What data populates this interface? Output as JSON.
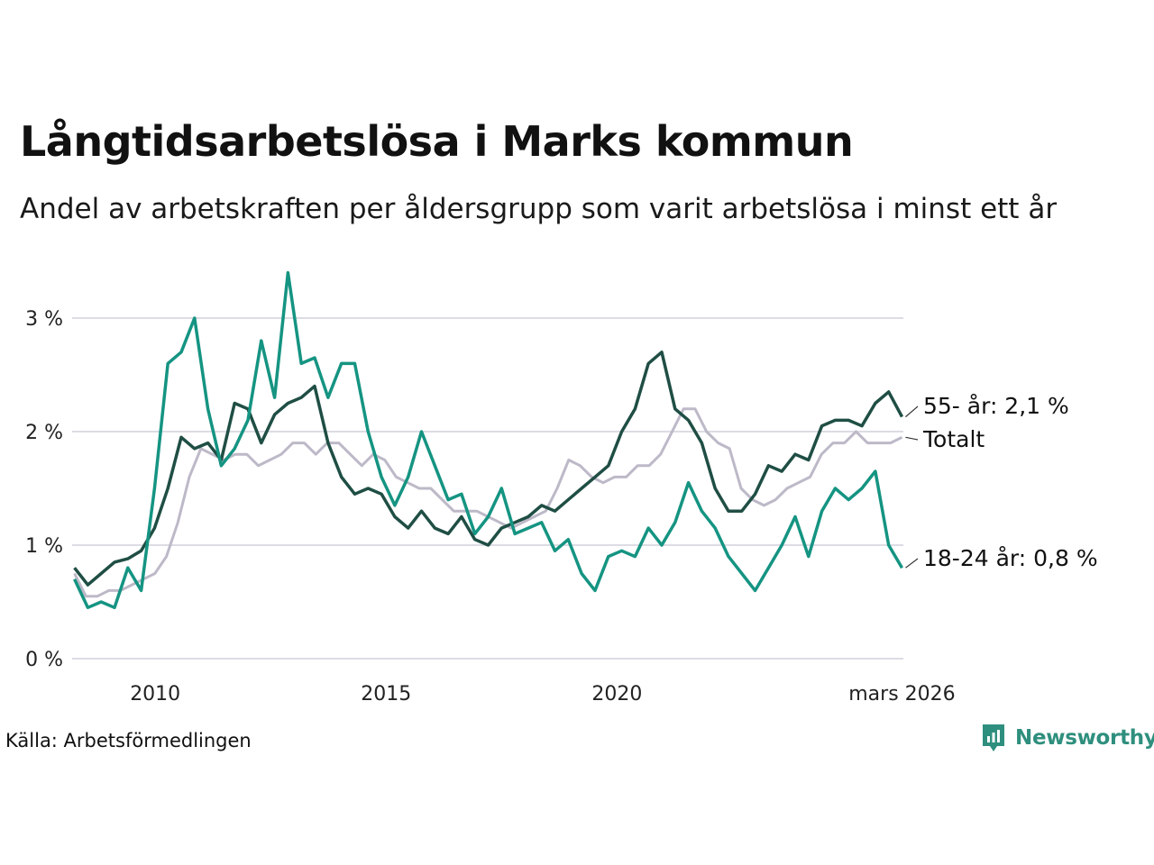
{
  "title": "Långtidsarbetslösa i Marks kommun",
  "subtitle": "Andel av arbetskraften per åldersgrupp som varit arbetslösa i minst ett år",
  "source": "Källa: Arbetsförmedlingen",
  "logo_text": "Newsworthy",
  "logo_icon": "newsworthy-chart-icon",
  "colors": {
    "total": "#bdb9c8",
    "age55": "#1f4e44",
    "age1824": "#159482",
    "grid": "#dcdce4",
    "logo": "#2f8f7e"
  },
  "chart_data": {
    "type": "line",
    "title": "Långtidsarbetslösa i Marks kommun",
    "xlabel": "",
    "ylabel": "",
    "xlim": [
      2008.2,
      2026.2
    ],
    "ylim": [
      0,
      3.5
    ],
    "x_start": 2008.25,
    "x_step": 0.25,
    "y_ticks": [
      {
        "value": 0,
        "label": "0 %"
      },
      {
        "value": 1,
        "label": "1 %"
      },
      {
        "value": 2,
        "label": "2 %"
      },
      {
        "value": 3,
        "label": "3 %"
      }
    ],
    "x_ticks": [
      {
        "value": 2010,
        "label": "2010"
      },
      {
        "value": 2015,
        "label": "2015"
      },
      {
        "value": 2020,
        "label": "2020"
      },
      {
        "value": 2026.17,
        "label": "mars 2026"
      }
    ],
    "series": [
      {
        "name": "Totalt",
        "label": "Totalt",
        "values": [
          0.75,
          0.55,
          0.55,
          0.6,
          0.6,
          0.65,
          0.7,
          0.75,
          0.9,
          1.2,
          1.6,
          1.85,
          1.8,
          1.75,
          1.8,
          1.8,
          1.7,
          1.75,
          1.8,
          1.9,
          1.9,
          1.8,
          1.9,
          1.9,
          1.8,
          1.7,
          1.8,
          1.75,
          1.6,
          1.55,
          1.5,
          1.5,
          1.4,
          1.3,
          1.3,
          1.3,
          1.25,
          1.2,
          1.15,
          1.2,
          1.25,
          1.3,
          1.5,
          1.75,
          1.7,
          1.6,
          1.55,
          1.6,
          1.6,
          1.7,
          1.7,
          1.8,
          2.0,
          2.2,
          2.2,
          2.0,
          1.9,
          1.85,
          1.5,
          1.4,
          1.35,
          1.4,
          1.5,
          1.55,
          1.6,
          1.8,
          1.9,
          1.9,
          2.0,
          1.9,
          1.9,
          1.9,
          1.95
        ]
      },
      {
        "name": "55- år",
        "label": "55- år: 2,1 %",
        "values": [
          0.8,
          0.65,
          0.75,
          0.85,
          0.88,
          0.95,
          1.15,
          1.5,
          1.95,
          1.85,
          1.9,
          1.75,
          2.25,
          2.2,
          1.9,
          2.15,
          2.25,
          2.3,
          2.4,
          1.9,
          1.6,
          1.45,
          1.5,
          1.45,
          1.25,
          1.15,
          1.3,
          1.15,
          1.1,
          1.25,
          1.05,
          1.0,
          1.15,
          1.2,
          1.25,
          1.35,
          1.3,
          1.4,
          1.5,
          1.6,
          1.7,
          2.0,
          2.2,
          2.6,
          2.7,
          2.2,
          2.1,
          1.9,
          1.5,
          1.3,
          1.3,
          1.45,
          1.7,
          1.65,
          1.8,
          1.75,
          2.05,
          2.1,
          2.1,
          2.05,
          2.25,
          2.35,
          2.13
        ]
      },
      {
        "name": "18-24 år",
        "label": "18-24 år: 0,8 %",
        "values": [
          0.7,
          0.45,
          0.5,
          0.45,
          0.8,
          0.6,
          1.5,
          2.6,
          2.7,
          3.0,
          2.2,
          1.7,
          1.85,
          2.1,
          2.8,
          2.3,
          3.4,
          2.6,
          2.65,
          2.3,
          2.6,
          2.6,
          2.0,
          1.6,
          1.35,
          1.6,
          2.0,
          1.7,
          1.4,
          1.45,
          1.1,
          1.25,
          1.5,
          1.1,
          1.15,
          1.2,
          0.95,
          1.05,
          0.75,
          0.6,
          0.9,
          0.95,
          0.9,
          1.15,
          1.0,
          1.2,
          1.55,
          1.3,
          1.15,
          0.9,
          0.75,
          0.6,
          0.8,
          1.0,
          1.25,
          0.9,
          1.3,
          1.5,
          1.4,
          1.5,
          1.65,
          1.0,
          0.8
        ]
      }
    ]
  }
}
